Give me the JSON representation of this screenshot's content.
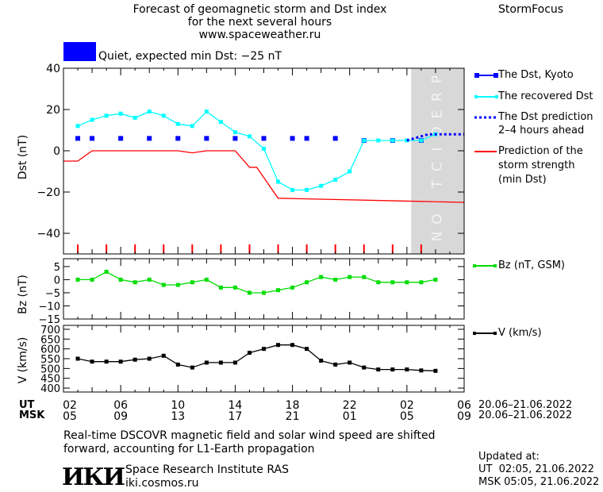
{
  "header": {
    "title_lines": [
      "Forecast of geomagnetic storm and Dst index",
      "for the next several hours",
      "www.spaceweather.ru"
    ],
    "brand": "StormFocus"
  },
  "status": {
    "label": "Quiet, expected min Dst: −25 nT",
    "color": "#0000ff"
  },
  "colors": {
    "dst": "#0000ff",
    "recovered": "#00ffff",
    "prediction": "#ff0000",
    "bz": "#00dd00",
    "v": "#000000",
    "forecast_zone": "#d8d8d8"
  },
  "chart_data": [
    {
      "type": "line",
      "ylabel": "Dst (nT)",
      "ylim": [
        -50,
        40
      ],
      "yticks": [
        -40,
        -20,
        0,
        20,
        40
      ],
      "xlim": [
        0,
        28
      ],
      "forecast_region": {
        "from": 24.3,
        "to": 28,
        "label": "PREDICTION"
      },
      "series": [
        {
          "name": "The Dst, Kyoto",
          "style": "points",
          "x": [
            1,
            2,
            4,
            6,
            8,
            10,
            12,
            14,
            16,
            17,
            19,
            21,
            23,
            25
          ],
          "y": [
            6,
            6,
            6,
            6,
            6,
            6,
            6,
            6,
            6,
            6,
            6,
            5,
            5,
            5
          ]
        },
        {
          "name": "The recovered Dst",
          "style": "line-markers",
          "x": [
            1,
            2,
            3,
            4,
            5,
            6,
            7,
            8,
            9,
            10,
            11,
            12,
            13,
            14,
            15,
            16,
            17,
            18,
            19,
            20,
            21,
            22,
            23,
            24,
            25,
            26
          ],
          "y": [
            12,
            15,
            17,
            18,
            16,
            19,
            17,
            13,
            12,
            19,
            14,
            9,
            7,
            1,
            -15,
            -19,
            -19,
            -17,
            -14,
            -10,
            5,
            5,
            5,
            5,
            5,
            8
          ]
        },
        {
          "name": "The Dst prediction 2–4 hours ahead",
          "style": "dotted",
          "x": [
            24,
            25,
            25.5,
            26,
            28
          ],
          "y": [
            5,
            7,
            8,
            8,
            8
          ]
        },
        {
          "name": "Prediction of the storm strength (min Dst)",
          "style": "line",
          "x": [
            0,
            1,
            2,
            8,
            9,
            10,
            12,
            13,
            13.5,
            15,
            28
          ],
          "y": [
            -5,
            -5,
            0,
            0,
            -1,
            0,
            0,
            -8,
            -8,
            -23,
            -25
          ]
        }
      ]
    },
    {
      "type": "line",
      "ylabel": "Bz (nT)",
      "ylim": [
        -15,
        8
      ],
      "yticks": [
        -15,
        -10,
        -5,
        0,
        5
      ],
      "xlim": [
        0,
        28
      ],
      "series": [
        {
          "name": "Bz (nT, GSM)",
          "x": [
            1,
            2,
            3,
            4,
            5,
            6,
            7,
            8,
            9,
            10,
            11,
            12,
            13,
            14,
            15,
            16,
            17,
            18,
            19,
            20,
            21,
            22,
            23,
            24,
            25,
            26
          ],
          "y": [
            0,
            0,
            3,
            0,
            -1,
            0,
            -2,
            -2,
            -1,
            0,
            -3,
            -3,
            -5,
            -5,
            -4,
            -3,
            -1,
            1,
            0,
            1,
            1,
            -1,
            -1,
            -1,
            -1,
            0
          ]
        }
      ]
    },
    {
      "type": "line",
      "ylabel": "V (km/s)",
      "ylim": [
        380,
        720
      ],
      "yticks": [
        400,
        450,
        500,
        550,
        600,
        650,
        700
      ],
      "xlim": [
        0,
        28
      ],
      "series": [
        {
          "name": "V (km/s)",
          "x": [
            1,
            2,
            3,
            4,
            5,
            6,
            7,
            8,
            9,
            10,
            11,
            12,
            13,
            14,
            15,
            16,
            17,
            18,
            19,
            20,
            21,
            22,
            23,
            24,
            25,
            26
          ],
          "y": [
            550,
            535,
            535,
            535,
            545,
            550,
            565,
            520,
            505,
            530,
            530,
            530,
            580,
            600,
            620,
            620,
            600,
            540,
            520,
            530,
            505,
            495,
            495,
            495,
            490,
            488
          ]
        }
      ]
    }
  ],
  "x_axis": {
    "positions": [
      0,
      4,
      8,
      12,
      16,
      20,
      24,
      28
    ],
    "ut_label": "UT",
    "msk_label": "MSK",
    "ut_ticks": [
      "02",
      "06",
      "10",
      "14",
      "18",
      "22",
      "02",
      "06"
    ],
    "msk_ticks": [
      "05",
      "09",
      "13",
      "17",
      "21",
      "01",
      "05",
      "09"
    ],
    "date_range_ut": "20.06–21.06.2022",
    "date_range_msk": "20.06–21.06.2022",
    "red_tick_positions": [
      1,
      3,
      5,
      7,
      9,
      11,
      13,
      15,
      17,
      19,
      21,
      23,
      25
    ]
  },
  "legend_dst": [
    {
      "lines": [
        "The Dst, Kyoto"
      ]
    },
    {
      "lines": [
        "The recovered Dst"
      ]
    },
    {
      "lines": [
        "The Dst prediction",
        "2–4 hours ahead"
      ]
    },
    {
      "lines": [
        "Prediction of the",
        "storm strength",
        "(min Dst)"
      ]
    }
  ],
  "legend_bz": "Bz (nT, GSM)",
  "legend_v": "V (km/s)",
  "footer": {
    "note_lines": [
      "Real-time DSCOVR magnetic field and solar wind speed are shifted",
      "forward, accounting for L1-Earth propagation"
    ],
    "institute_logo": "ИКИ",
    "institute_name": "Space Research Institute RAS",
    "institute_site": "iki.cosmos.ru",
    "updated_label": "Updated at:",
    "updated_ut": "UT  02:05, 21.06.2022",
    "updated_msk": "MSK 05:05, 21.06.2022"
  }
}
